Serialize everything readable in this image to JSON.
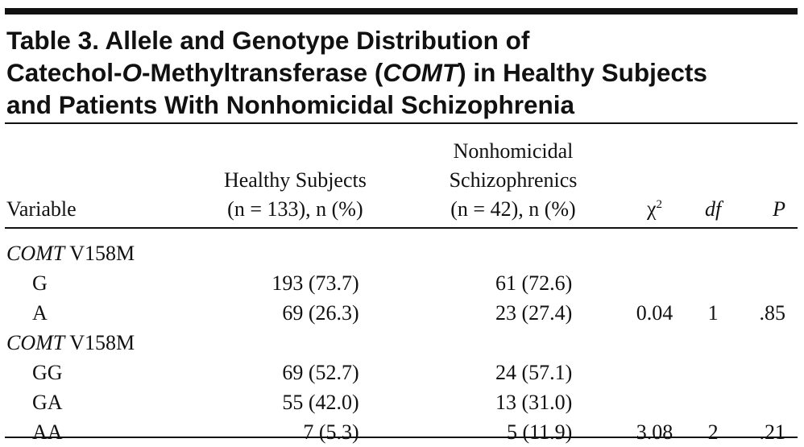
{
  "title": {
    "line1": "Table 3. Allele and Genotype Distribution of",
    "line2": [
      "Catechol-",
      "O",
      "-Methyltransferase (",
      "COMT",
      ") in Healthy Subjects"
    ],
    "line3": "and Patients With Nonhomicidal Schizophrenia"
  },
  "table": {
    "header": {
      "variable": "Variable",
      "healthy": [
        "Healthy Subjects",
        "(n = 133), n (%)"
      ],
      "schizophrenic": [
        "Nonhomicidal",
        "Schizophrenics",
        "(n = 42), n (%)"
      ],
      "chi_square": {
        "symbol": "χ",
        "sup": "2"
      },
      "df": "df",
      "p": "P"
    },
    "sections": [
      {
        "gene": "COMT",
        "variant": "V158M",
        "rows": [
          [
            "G",
            "193 (73.7)",
            "61 (72.6)"
          ],
          [
            "A",
            "69 (26.3)",
            "23 (27.4)",
            "0.04",
            "1",
            ".85"
          ]
        ]
      },
      {
        "gene": "COMT",
        "variant": "V158M",
        "rows": [
          [
            "GG",
            "69 (52.7)",
            "24 (57.1)"
          ],
          [
            "GA",
            "55 (42.0)",
            "13 (31.0)"
          ],
          [
            "AA",
            "7 (5.3)",
            "5 (11.9)",
            "3.08",
            "2",
            ".21"
          ]
        ]
      }
    ]
  }
}
